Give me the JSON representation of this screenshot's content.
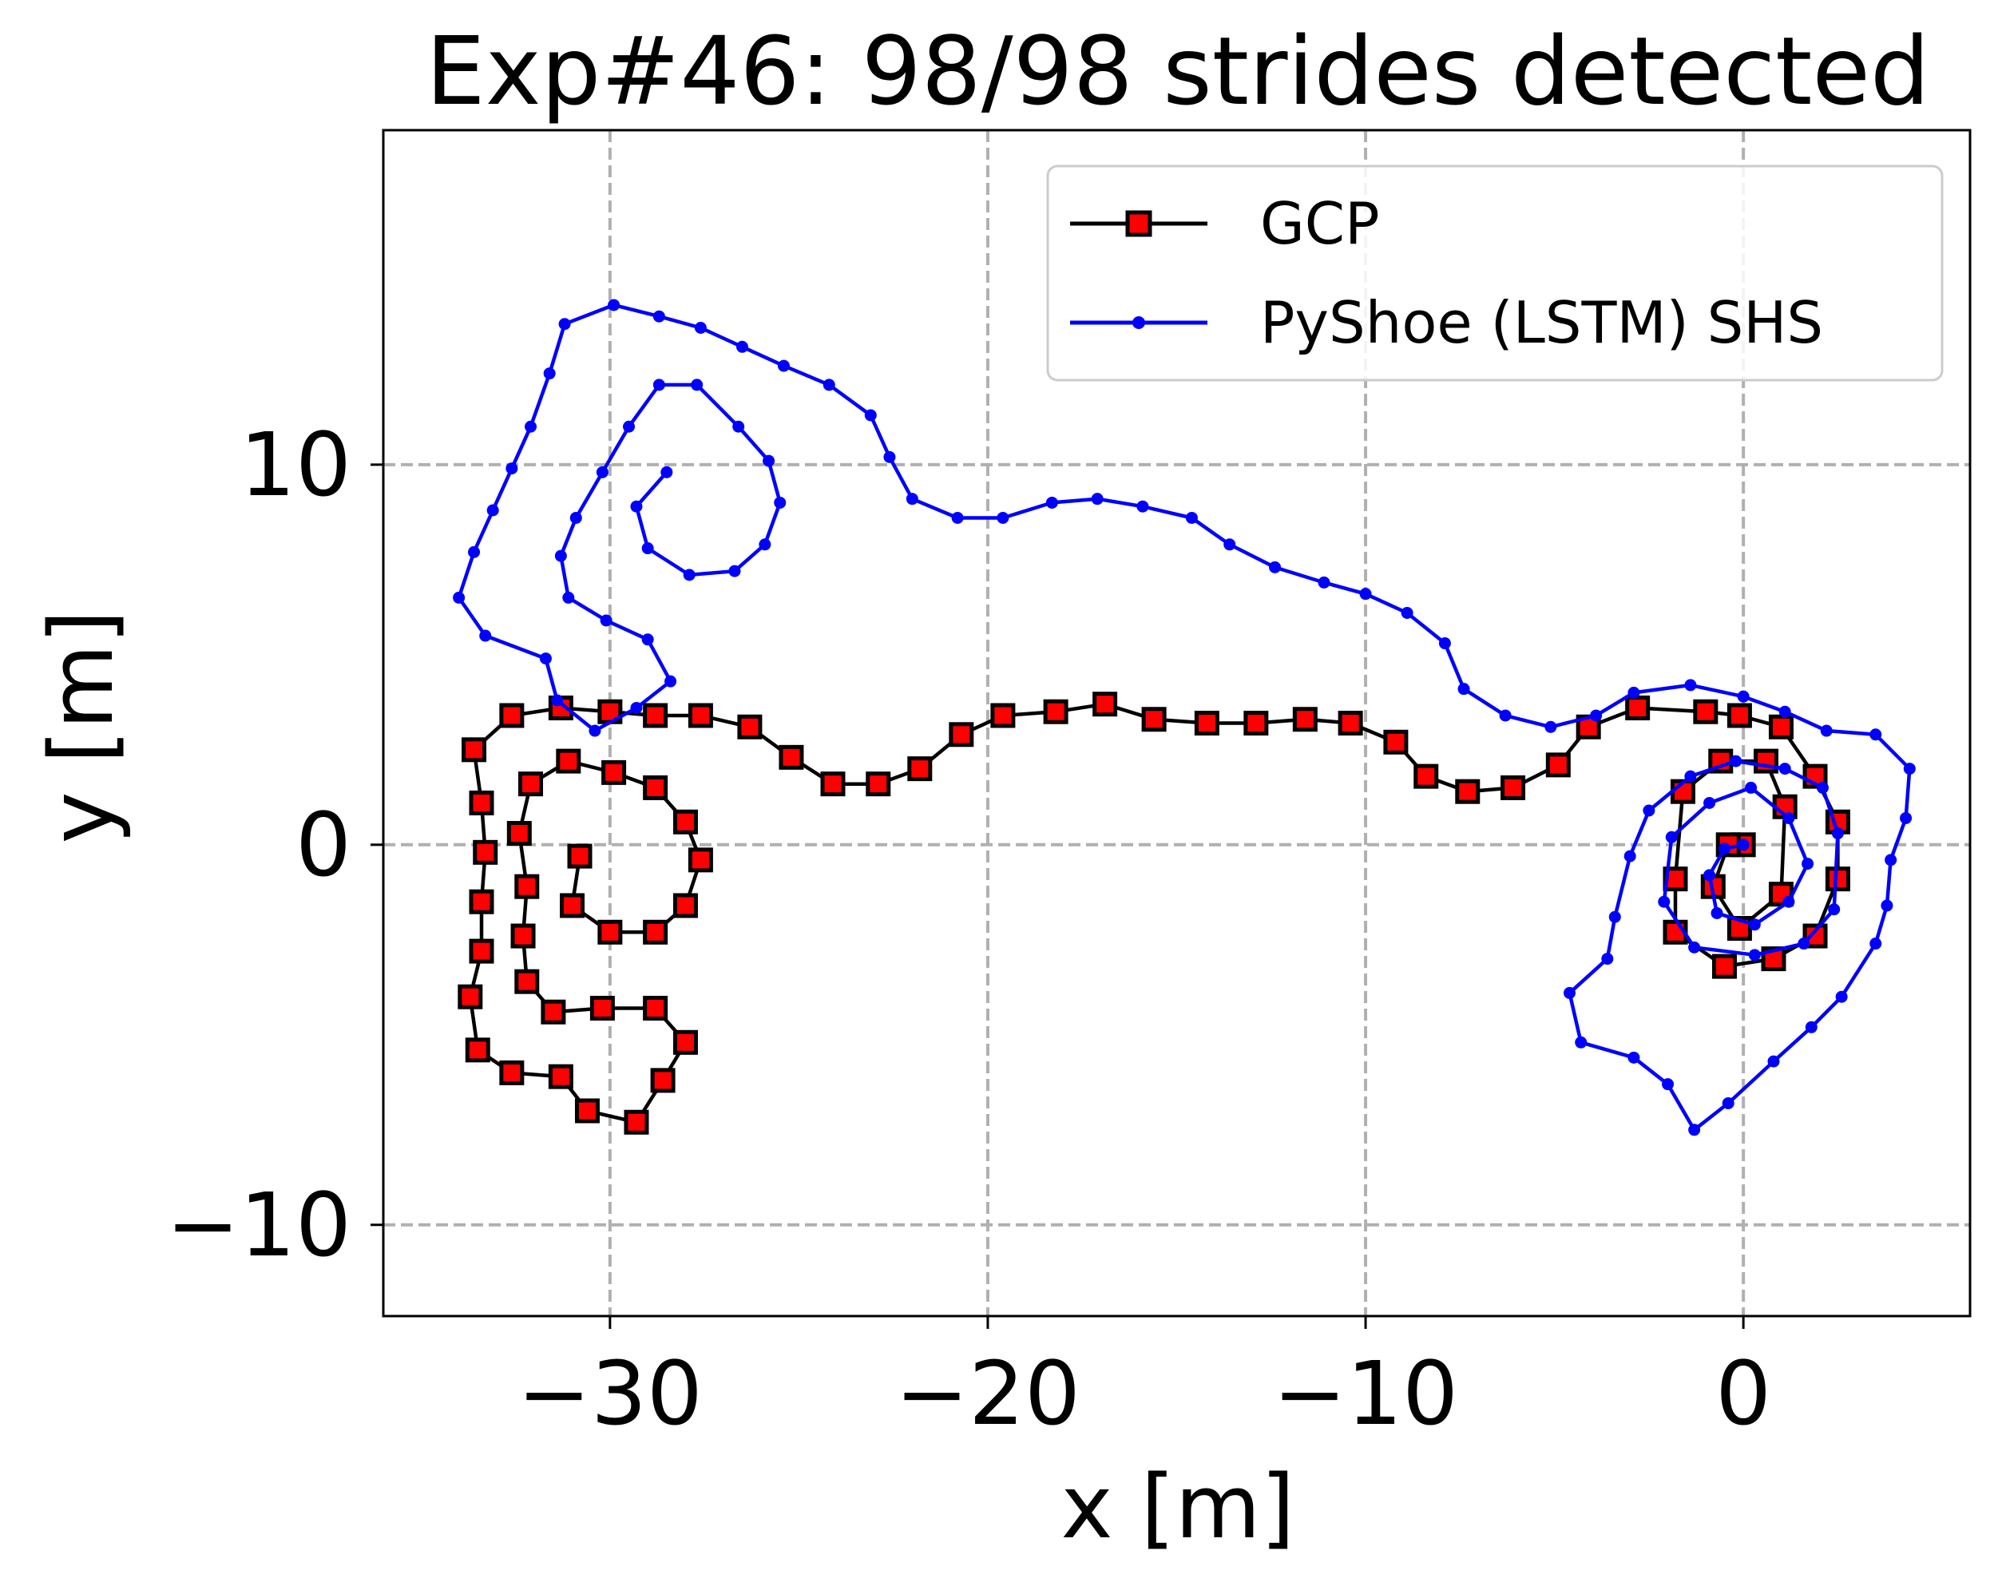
{
  "chart_data": {
    "type": "line",
    "title": "Exp#46: 98/98 strides detected",
    "xlabel": "x [m]",
    "ylabel": "y [m]",
    "xlim": [
      -36.0,
      6.0
    ],
    "ylim": [
      -12.4,
      18.8
    ],
    "xticks": [
      -30,
      -20,
      -10,
      0
    ],
    "yticks": [
      -10,
      0,
      10
    ],
    "xtick_labels": [
      "−30",
      "−20",
      "−10",
      "0"
    ],
    "ytick_labels": [
      "−10",
      "0",
      "10"
    ],
    "grid": true,
    "legend_position": "top-right",
    "series": [
      {
        "name": "GCP",
        "color": "#000000",
        "marker": "square",
        "marker_face": "#ff0000",
        "points": [
          [
            0.0,
            0.0
          ],
          [
            -0.4,
            0.0
          ],
          [
            -0.8,
            -1.1
          ],
          [
            -0.1,
            -2.2
          ],
          [
            1.0,
            -1.3
          ],
          [
            1.1,
            1.0
          ],
          [
            0.6,
            2.2
          ],
          [
            -0.6,
            2.2
          ],
          [
            -1.6,
            1.4
          ],
          [
            -1.8,
            -0.9
          ],
          [
            -1.8,
            -2.3
          ],
          [
            -0.5,
            -3.2
          ],
          [
            0.8,
            -3.0
          ],
          [
            1.9,
            -2.4
          ],
          [
            2.5,
            -0.9
          ],
          [
            2.5,
            0.6
          ],
          [
            1.9,
            1.8
          ],
          [
            1.0,
            3.1
          ],
          [
            -0.1,
            3.4
          ],
          [
            -1.0,
            3.5
          ],
          [
            -2.8,
            3.6
          ],
          [
            -4.1,
            3.1
          ],
          [
            -4.9,
            2.1
          ],
          [
            -6.1,
            1.5
          ],
          [
            -7.3,
            1.4
          ],
          [
            -8.4,
            1.8
          ],
          [
            -9.2,
            2.7
          ],
          [
            -10.4,
            3.2
          ],
          [
            -11.6,
            3.3
          ],
          [
            -12.9,
            3.2
          ],
          [
            -14.2,
            3.2
          ],
          [
            -15.6,
            3.3
          ],
          [
            -16.9,
            3.7
          ],
          [
            -18.2,
            3.5
          ],
          [
            -19.6,
            3.4
          ],
          [
            -20.7,
            2.9
          ],
          [
            -21.8,
            2.0
          ],
          [
            -22.9,
            1.6
          ],
          [
            -24.1,
            1.6
          ],
          [
            -25.2,
            2.3
          ],
          [
            -26.3,
            3.1
          ],
          [
            -27.6,
            3.4
          ],
          [
            -28.8,
            3.4
          ],
          [
            -30.0,
            3.5
          ],
          [
            -31.3,
            3.6
          ],
          [
            -32.6,
            3.4
          ],
          [
            -33.6,
            2.5
          ],
          [
            -33.4,
            1.1
          ],
          [
            -33.3,
            -0.2
          ],
          [
            -33.4,
            -1.5
          ],
          [
            -33.4,
            -2.8
          ],
          [
            -33.7,
            -4.0
          ],
          [
            -33.5,
            -5.4
          ],
          [
            -32.6,
            -6.0
          ],
          [
            -31.3,
            -6.1
          ],
          [
            -30.6,
            -7.0
          ],
          [
            -29.3,
            -7.3
          ],
          [
            -28.6,
            -6.2
          ],
          [
            -28.0,
            -5.2
          ],
          [
            -28.8,
            -4.3
          ],
          [
            -30.2,
            -4.3
          ],
          [
            -31.5,
            -4.4
          ],
          [
            -32.2,
            -3.6
          ],
          [
            -32.3,
            -2.4
          ],
          [
            -32.2,
            -1.1
          ],
          [
            -32.4,
            0.3
          ],
          [
            -32.1,
            1.6
          ],
          [
            -31.1,
            2.2
          ],
          [
            -29.9,
            1.9
          ],
          [
            -28.8,
            1.5
          ],
          [
            -28.0,
            0.6
          ],
          [
            -27.6,
            -0.4
          ],
          [
            -28.0,
            -1.6
          ],
          [
            -28.8,
            -2.3
          ],
          [
            -30.0,
            -2.3
          ],
          [
            -31.0,
            -1.6
          ],
          [
            -30.8,
            -0.3
          ]
        ]
      },
      {
        "name": "PyShoe (LSTM) SHS",
        "color": "#0000ff",
        "marker": "dot",
        "marker_face": "#0000ff",
        "points": [
          [
            0.0,
            0.0
          ],
          [
            -0.5,
            -0.1
          ],
          [
            -0.9,
            -0.8
          ],
          [
            -0.7,
            -1.8
          ],
          [
            0.3,
            -2.1
          ],
          [
            1.2,
            -1.5
          ],
          [
            1.7,
            -0.5
          ],
          [
            1.2,
            0.7
          ],
          [
            0.2,
            1.5
          ],
          [
            -0.9,
            1.1
          ],
          [
            -1.9,
            0.2
          ],
          [
            -2.1,
            -1.5
          ],
          [
            -1.3,
            -2.7
          ],
          [
            0.3,
            -2.9
          ],
          [
            1.6,
            -2.6
          ],
          [
            2.4,
            -1.7
          ],
          [
            2.5,
            0.3
          ],
          [
            2.1,
            1.5
          ],
          [
            1.1,
            2.0
          ],
          [
            -0.2,
            2.2
          ],
          [
            -1.4,
            1.8
          ],
          [
            -2.5,
            0.9
          ],
          [
            -3.0,
            -0.3
          ],
          [
            -3.4,
            -1.9
          ],
          [
            -3.6,
            -3.0
          ],
          [
            -4.6,
            -3.9
          ],
          [
            -4.3,
            -5.2
          ],
          [
            -2.9,
            -5.6
          ],
          [
            -2.0,
            -6.3
          ],
          [
            -1.3,
            -7.5
          ],
          [
            -0.4,
            -6.8
          ],
          [
            0.8,
            -5.7
          ],
          [
            1.8,
            -4.8
          ],
          [
            2.6,
            -4.0
          ],
          [
            3.5,
            -2.6
          ],
          [
            3.8,
            -1.6
          ],
          [
            3.9,
            -0.4
          ],
          [
            4.3,
            0.7
          ],
          [
            4.4,
            2.0
          ],
          [
            3.5,
            2.9
          ],
          [
            2.2,
            3.0
          ],
          [
            1.1,
            3.5
          ],
          [
            0.0,
            3.9
          ],
          [
            -1.4,
            4.2
          ],
          [
            -2.9,
            4.0
          ],
          [
            -3.9,
            3.4
          ],
          [
            -5.1,
            3.1
          ],
          [
            -6.3,
            3.4
          ],
          [
            -7.4,
            4.1
          ],
          [
            -7.9,
            5.3
          ],
          [
            -8.9,
            6.1
          ],
          [
            -10.0,
            6.6
          ],
          [
            -11.1,
            6.9
          ],
          [
            -12.4,
            7.3
          ],
          [
            -13.6,
            7.9
          ],
          [
            -14.6,
            8.6
          ],
          [
            -15.9,
            8.9
          ],
          [
            -17.1,
            9.1
          ],
          [
            -18.3,
            9.0
          ],
          [
            -19.6,
            8.6
          ],
          [
            -20.8,
            8.6
          ],
          [
            -22.0,
            9.1
          ],
          [
            -22.6,
            10.2
          ],
          [
            -23.1,
            11.3
          ],
          [
            -24.2,
            12.1
          ],
          [
            -25.4,
            12.6
          ],
          [
            -26.5,
            13.1
          ],
          [
            -27.6,
            13.6
          ],
          [
            -28.7,
            13.9
          ],
          [
            -29.9,
            14.2
          ],
          [
            -31.2,
            13.7
          ],
          [
            -31.6,
            12.4
          ],
          [
            -32.1,
            11.0
          ],
          [
            -32.6,
            9.9
          ],
          [
            -33.1,
            8.8
          ],
          [
            -33.6,
            7.7
          ],
          [
            -34.0,
            6.5
          ],
          [
            -33.3,
            5.5
          ],
          [
            -31.7,
            4.9
          ],
          [
            -31.4,
            3.8
          ],
          [
            -30.4,
            3.0
          ],
          [
            -29.3,
            3.6
          ],
          [
            -28.4,
            4.3
          ],
          [
            -29.0,
            5.4
          ],
          [
            -30.1,
            5.9
          ],
          [
            -31.1,
            6.5
          ],
          [
            -31.3,
            7.6
          ],
          [
            -30.9,
            8.6
          ],
          [
            -30.2,
            9.8
          ],
          [
            -29.5,
            11.0
          ],
          [
            -28.7,
            12.1
          ],
          [
            -27.7,
            12.1
          ],
          [
            -26.6,
            11.0
          ],
          [
            -25.8,
            10.1
          ],
          [
            -25.5,
            9.0
          ],
          [
            -25.9,
            7.9
          ],
          [
            -26.7,
            7.2
          ],
          [
            -27.9,
            7.1
          ],
          [
            -29.0,
            7.8
          ],
          [
            -29.3,
            8.9
          ],
          [
            -28.5,
            9.8
          ]
        ]
      }
    ]
  }
}
